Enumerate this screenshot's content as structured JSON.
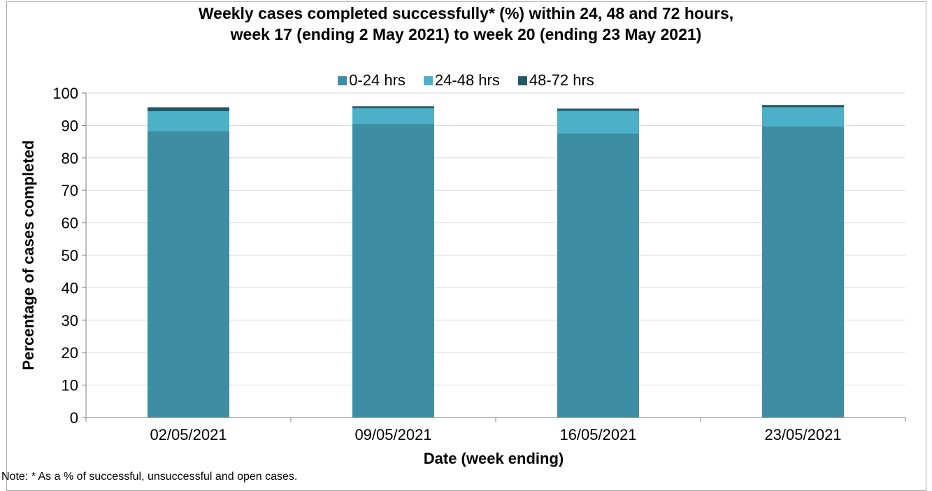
{
  "chart_data": {
    "type": "bar",
    "stacked": true,
    "title_line1": "Weekly cases completed successfully* (%) within 24, 48 and 72 hours,",
    "title_line2": "week 17 (ending 2 May 2021) to week 20 (ending 23  May 2021)",
    "xlabel": "Date (week ending)",
    "ylabel": "Percentage of cases completed",
    "ylim": [
      0,
      100
    ],
    "yticks": [
      0,
      10,
      20,
      30,
      40,
      50,
      60,
      70,
      80,
      90,
      100
    ],
    "categories": [
      "02/05/2021",
      "09/05/2021",
      "16/05/2021",
      "23/05/2021"
    ],
    "series": [
      {
        "name": "0-24 hrs",
        "color": "#3d8da4",
        "values": [
          88.3,
          90.5,
          87.5,
          89.8
        ]
      },
      {
        "name": "24-48 hrs",
        "color": "#4bb0c8",
        "values": [
          6.1,
          4.8,
          7.0,
          5.8
        ]
      },
      {
        "name": "48-72 hrs",
        "color": "#215967",
        "values": [
          1.2,
          0.6,
          0.7,
          0.7
        ]
      }
    ],
    "legend_position": "top",
    "grid": true
  },
  "note": "Note: * As a % of successful, unsuccessful and open cases."
}
